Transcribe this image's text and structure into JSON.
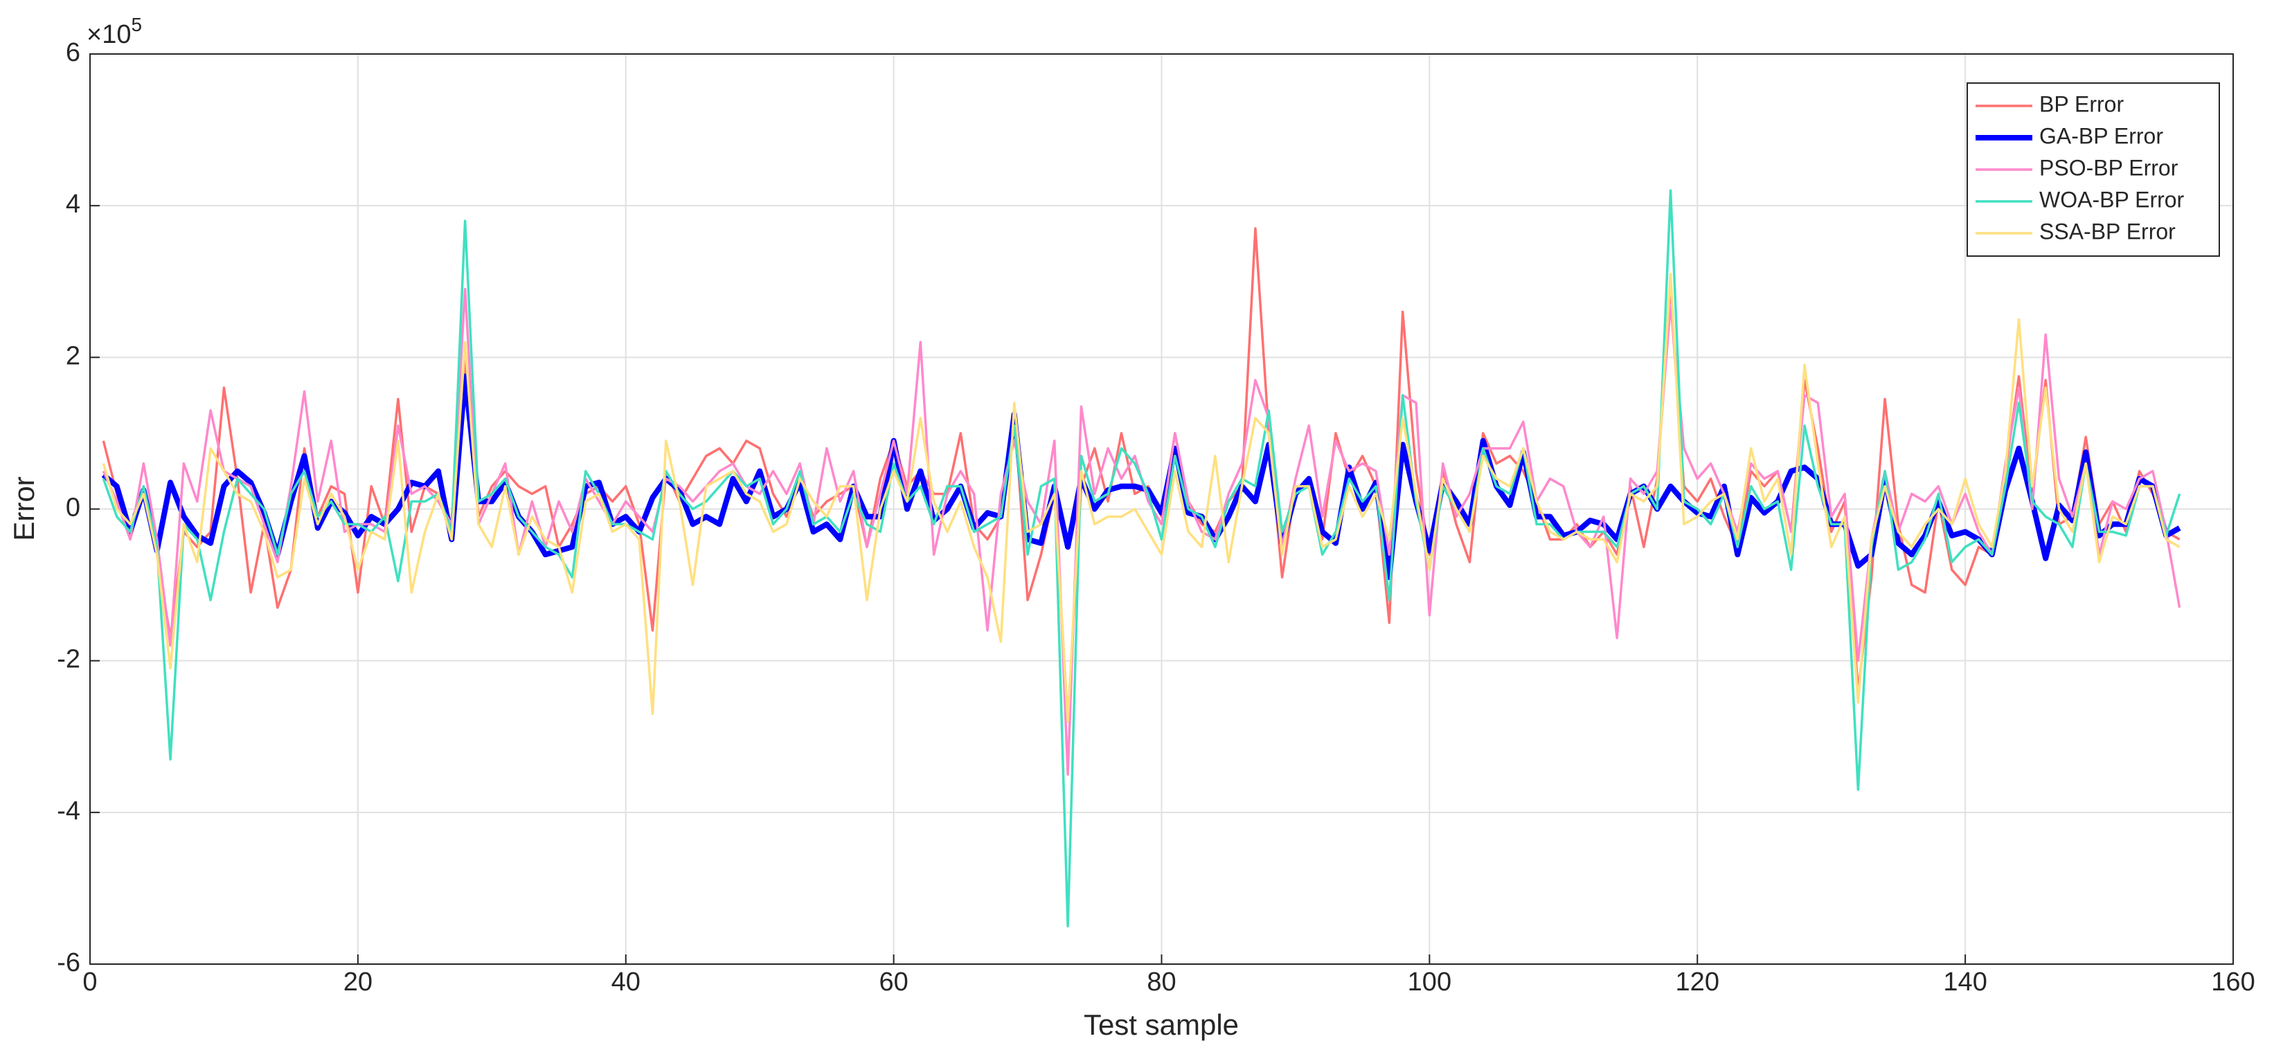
{
  "chart_data": {
    "type": "line",
    "x_label": "Test sample",
    "y_label": "Error",
    "y_multiplier": {
      "base": "×10",
      "power": "5"
    },
    "xlim": [
      0,
      160
    ],
    "xticks": [
      0,
      20,
      40,
      60,
      80,
      100,
      120,
      140,
      160
    ],
    "ylim": [
      -6,
      6
    ],
    "yticks": [
      -6,
      -4,
      -2,
      0,
      2,
      4,
      6
    ],
    "grid": true,
    "legend": "northeast",
    "x": [
      1,
      2,
      3,
      4,
      5,
      6,
      7,
      8,
      9,
      10,
      11,
      12,
      13,
      14,
      15,
      16,
      17,
      18,
      19,
      20,
      21,
      22,
      23,
      24,
      25,
      26,
      27,
      28,
      29,
      30,
      31,
      32,
      33,
      34,
      35,
      36,
      37,
      38,
      39,
      40,
      41,
      42,
      43,
      44,
      45,
      46,
      47,
      48,
      49,
      50,
      51,
      52,
      53,
      54,
      55,
      56,
      57,
      58,
      59,
      60,
      61,
      62,
      63,
      64,
      65,
      66,
      67,
      68,
      69,
      70,
      71,
      72,
      73,
      74,
      75,
      76,
      77,
      78,
      79,
      80,
      81,
      82,
      83,
      84,
      85,
      86,
      87,
      88,
      89,
      90,
      91,
      92,
      93,
      94,
      95,
      96,
      97,
      98,
      99,
      100,
      101,
      102,
      103,
      104,
      105,
      106,
      107,
      108,
      109,
      110,
      111,
      112,
      113,
      114,
      115,
      116,
      117,
      118,
      119,
      120,
      121,
      122,
      123,
      124,
      125,
      126,
      127,
      128,
      129,
      130,
      131,
      132,
      133,
      134,
      135,
      136,
      137,
      138,
      139,
      140,
      141,
      142,
      143,
      144,
      145,
      146,
      147,
      148,
      149,
      150,
      151,
      152,
      153,
      154,
      155,
      156
    ],
    "series": [
      {
        "name": "BP Error",
        "color": "#ff7070",
        "linewidth": 3.5,
        "values": [
          0.9,
          0.2,
          -0.4,
          0.3,
          -0.6,
          -1.7,
          -0.3,
          -0.5,
          -0.3,
          1.6,
          0.4,
          -1.1,
          -0.2,
          -1.3,
          -0.8,
          0.8,
          -0.1,
          0.3,
          0.2,
          -1.1,
          0.3,
          -0.2,
          1.45,
          -0.3,
          0.3,
          0.2,
          -0.4,
          2.0,
          -0.1,
          0.3,
          0.5,
          0.3,
          0.2,
          0.3,
          -0.5,
          -0.2,
          0.2,
          0.3,
          0.1,
          0.3,
          -0.2,
          -1.6,
          0.5,
          0.1,
          0.4,
          0.7,
          0.8,
          0.6,
          0.9,
          0.8,
          0.2,
          -0.1,
          0.4,
          -0.1,
          0.1,
          0.2,
          0.3,
          -0.5,
          0.4,
          0.9,
          0.3,
          0.5,
          0.2,
          0.2,
          1.0,
          -0.2,
          -0.4,
          -0.1,
          1.3,
          -1.2,
          -0.6,
          0.2,
          -2.8,
          0.3,
          0.8,
          0.1,
          1.0,
          0.2,
          0.3,
          -0.1,
          1.0,
          0.1,
          -0.2,
          -0.3,
          0.1,
          0.3,
          3.7,
          1.0,
          -0.9,
          0.3,
          0.3,
          -0.4,
          1.0,
          0.4,
          0.7,
          0.3,
          -1.5,
          2.6,
          0.5,
          -0.6,
          0.5,
          -0.2,
          -0.7,
          1.0,
          0.6,
          0.7,
          0.5,
          0.1,
          -0.4,
          -0.4,
          -0.2,
          -0.5,
          -0.3,
          -0.6,
          0.3,
          -0.5,
          0.4,
          2.8,
          0.3,
          0.1,
          0.4,
          -0.1,
          -0.5,
          0.5,
          0.3,
          0.5,
          -0.3,
          1.7,
          0.8,
          -0.3,
          0.1,
          -2.4,
          -0.9,
          1.45,
          -0.2,
          -1.0,
          -1.1,
          0.1,
          -0.8,
          -1.0,
          -0.5,
          -0.6,
          0.5,
          1.75,
          0.2,
          1.7,
          -0.2,
          -0.1,
          0.95,
          -0.2,
          0.1,
          -0.3,
          0.5,
          0.2,
          -0.3,
          -0.4
        ]
      },
      {
        "name": "GA-BP Error",
        "color": "#0000ff",
        "linewidth": 8,
        "values": [
          0.45,
          0.3,
          -0.3,
          0.25,
          -0.55,
          0.35,
          -0.1,
          -0.35,
          -0.45,
          0.3,
          0.5,
          0.35,
          -0.05,
          -0.6,
          0.1,
          0.7,
          -0.25,
          0.1,
          -0.05,
          -0.35,
          -0.1,
          -0.2,
          0,
          0.35,
          0.3,
          0.5,
          -0.4,
          1.75,
          0.1,
          0.1,
          0.35,
          -0.1,
          -0.3,
          -0.6,
          -0.55,
          -0.5,
          0.3,
          0.35,
          -0.2,
          -0.1,
          -0.3,
          0.15,
          0.4,
          0.25,
          -0.2,
          -0.1,
          -0.2,
          0.4,
          0.1,
          0.5,
          -0.1,
          0,
          0.35,
          -0.3,
          -0.2,
          -0.4,
          0.3,
          -0.1,
          -0.1,
          0.9,
          0,
          0.5,
          -0.15,
          0,
          0.3,
          -0.25,
          -0.05,
          -0.1,
          1.25,
          -0.4,
          -0.45,
          0.3,
          -0.5,
          0.4,
          0,
          0.25,
          0.3,
          0.3,
          0.25,
          -0.05,
          0.8,
          -0.05,
          -0.1,
          -0.4,
          -0.1,
          0.3,
          0.1,
          0.85,
          -0.45,
          0.2,
          0.4,
          -0.3,
          -0.45,
          0.55,
          0,
          0.35,
          -0.9,
          0.85,
          0.1,
          -0.55,
          0.35,
          0.1,
          -0.2,
          0.9,
          0.3,
          0.05,
          0.75,
          -0.1,
          -0.1,
          -0.35,
          -0.3,
          -0.15,
          -0.2,
          -0.4,
          0.2,
          0.3,
          0,
          0.3,
          0.1,
          -0.05,
          -0.1,
          0.3,
          -0.6,
          0.15,
          -0.05,
          0.1,
          0.5,
          0.55,
          0.4,
          -0.2,
          -0.2,
          -0.75,
          -0.6,
          0.4,
          -0.45,
          -0.6,
          -0.35,
          0.1,
          -0.35,
          -0.3,
          -0.4,
          -0.6,
          0.25,
          0.8,
          0.1,
          -0.65,
          0.05,
          -0.15,
          0.75,
          -0.35,
          -0.2,
          -0.2,
          0.4,
          0.3,
          -0.35,
          -0.25
        ]
      },
      {
        "name": "PSO-BP Error",
        "color": "#ff88cc",
        "linewidth": 3.5,
        "values": [
          0.5,
          0.1,
          -0.4,
          0.6,
          -0.4,
          -1.8,
          0.6,
          0.1,
          1.3,
          0.5,
          0.4,
          0.3,
          -0.2,
          -0.7,
          0.3,
          1.55,
          0.1,
          0.9,
          -0.3,
          -0.2,
          -0.2,
          -0.3,
          1.1,
          0.2,
          0.3,
          0.1,
          -0.2,
          2.9,
          -0.2,
          0.2,
          0.6,
          -0.6,
          0.1,
          -0.5,
          0.1,
          -0.3,
          0.4,
          0.1,
          -0.2,
          0.1,
          -0.1,
          -0.3,
          0.4,
          0.3,
          0.1,
          0.3,
          0.5,
          0.6,
          0.3,
          0.2,
          0.5,
          0.2,
          0.6,
          -0.2,
          0.8,
          0.1,
          0.5,
          -0.5,
          0.2,
          0.9,
          0.2,
          2.2,
          -0.6,
          0.2,
          0.5,
          0.2,
          -1.6,
          0.2,
          0.9,
          0.1,
          -0.2,
          0.9,
          -3.5,
          1.35,
          0.2,
          0.8,
          0.4,
          0.7,
          0.1,
          -0.2,
          1.0,
          0.1,
          -0.3,
          -0.4,
          0.2,
          0.6,
          1.7,
          1.2,
          -0.5,
          0.4,
          1.1,
          -0.1,
          0.9,
          0.5,
          0.6,
          0.5,
          -0.6,
          1.5,
          1.4,
          -1.4,
          0.6,
          -0.1,
          0.2,
          0.8,
          0.8,
          0.8,
          1.15,
          0.1,
          0.4,
          0.3,
          -0.3,
          -0.5,
          -0.1,
          -1.7,
          0.4,
          0.2,
          0.5,
          2.7,
          0.8,
          0.4,
          0.6,
          0.2,
          -0.3,
          0.6,
          0.4,
          0.5,
          -0.3,
          1.5,
          1.4,
          -0.1,
          0.2,
          -2.0,
          -0.4,
          0.5,
          -0.3,
          0.2,
          0.1,
          0.3,
          -0.2,
          0.2,
          -0.3,
          -0.6,
          0.6,
          1.6,
          0.0,
          2.3,
          0.4,
          -0.1,
          0.6,
          -0.6,
          0.1,
          0.0,
          0.4,
          0.5,
          -0.3,
          -1.3
        ]
      },
      {
        "name": "WOA-BP Error",
        "color": "#40e0c0",
        "linewidth": 3.5,
        "values": [
          0.4,
          -0.1,
          -0.3,
          0.3,
          -0.5,
          -3.3,
          -0.2,
          -0.4,
          -1.2,
          -0.3,
          0.4,
          0.2,
          0.0,
          -0.6,
          0.2,
          0.5,
          -0.1,
          0.1,
          -0.2,
          -0.2,
          -0.3,
          -0.1,
          -0.95,
          0.1,
          0.1,
          0.2,
          -0.3,
          3.8,
          0.1,
          0.2,
          0.4,
          -0.1,
          -0.3,
          -0.5,
          -0.6,
          -0.9,
          0.5,
          0.2,
          -0.2,
          -0.2,
          -0.3,
          -0.4,
          0.5,
          0.2,
          0.0,
          0.1,
          0.3,
          0.5,
          0.3,
          0.4,
          -0.2,
          0.0,
          0.5,
          -0.2,
          -0.1,
          -0.3,
          0.2,
          -0.2,
          -0.3,
          0.6,
          0.1,
          0.3,
          -0.2,
          0.3,
          0.3,
          -0.3,
          -0.2,
          -0.1,
          1.1,
          -0.6,
          0.3,
          0.4,
          -5.5,
          0.7,
          0.1,
          0.2,
          0.8,
          0.6,
          0.2,
          -0.4,
          0.7,
          0.0,
          -0.1,
          -0.5,
          0.1,
          0.4,
          0.3,
          1.3,
          -0.3,
          0.2,
          0.3,
          -0.6,
          -0.3,
          0.4,
          0.1,
          0.3,
          -1.2,
          1.5,
          0.1,
          -0.8,
          0.3,
          0.0,
          -0.3,
          0.8,
          0.3,
          0.2,
          0.8,
          -0.2,
          -0.2,
          -0.4,
          -0.3,
          -0.3,
          -0.3,
          -0.5,
          0.2,
          0.3,
          0.0,
          4.2,
          0.1,
          0.0,
          -0.2,
          0.2,
          -0.5,
          0.3,
          0.0,
          0.1,
          -0.8,
          1.1,
          0.3,
          -0.2,
          -0.2,
          -3.7,
          -0.5,
          0.5,
          -0.8,
          -0.7,
          -0.4,
          0.2,
          -0.7,
          -0.5,
          -0.4,
          -0.6,
          0.3,
          1.4,
          0.1,
          -0.1,
          -0.2,
          -0.5,
          0.6,
          -0.3,
          -0.3,
          -0.35,
          0.3,
          0.3,
          -0.35,
          0.2
        ]
      },
      {
        "name": "SSA-BP Error",
        "color": "#ffe080",
        "linewidth": 3.5,
        "values": [
          0.6,
          0.0,
          -0.2,
          0.2,
          -0.6,
          -2.1,
          -0.2,
          -0.7,
          0.8,
          0.5,
          0.2,
          0.1,
          -0.3,
          -0.9,
          -0.8,
          0.4,
          -0.2,
          0.2,
          -0.1,
          -0.8,
          -0.3,
          -0.4,
          0.9,
          -1.1,
          -0.3,
          0.2,
          -0.4,
          2.2,
          -0.2,
          -0.5,
          0.3,
          -0.6,
          -0.1,
          -0.4,
          -0.5,
          -1.1,
          0.1,
          0.2,
          -0.3,
          -0.2,
          -0.4,
          -2.7,
          0.9,
          0.1,
          -1.0,
          0.3,
          0.4,
          0.5,
          0.2,
          0.1,
          -0.3,
          -0.2,
          0.4,
          0.1,
          -0.1,
          0.3,
          0.3,
          -1.2,
          0.0,
          0.5,
          0.1,
          1.2,
          0.1,
          -0.3,
          0.1,
          -0.5,
          -0.9,
          -1.75,
          1.4,
          -0.3,
          -0.2,
          0.2,
          -2.8,
          0.5,
          -0.2,
          -0.1,
          -0.1,
          0.0,
          -0.3,
          -0.6,
          0.5,
          -0.3,
          -0.5,
          0.7,
          -0.7,
          0.3,
          1.2,
          1.0,
          -0.6,
          0.3,
          0.3,
          -0.5,
          -0.4,
          0.3,
          -0.1,
          0.2,
          -0.4,
          1.2,
          0.2,
          -0.8,
          0.4,
          0.0,
          -0.3,
          0.7,
          0.4,
          0.3,
          0.8,
          0.1,
          -0.3,
          -0.4,
          -0.3,
          -0.4,
          -0.4,
          -0.7,
          0.2,
          0.1,
          0.3,
          3.1,
          -0.2,
          -0.1,
          0.1,
          0.2,
          -0.4,
          0.8,
          0.1,
          0.4,
          -0.6,
          1.9,
          0.6,
          -0.5,
          -0.1,
          -2.55,
          -0.4,
          0.3,
          -0.3,
          -0.5,
          -0.2,
          0.0,
          -0.2,
          0.4,
          -0.2,
          -0.5,
          0.5,
          2.5,
          0.3,
          1.6,
          0.0,
          -0.3,
          0.6,
          -0.7,
          -0.1,
          -0.2,
          0.3,
          0.3,
          -0.4,
          -0.5
        ]
      }
    ]
  }
}
